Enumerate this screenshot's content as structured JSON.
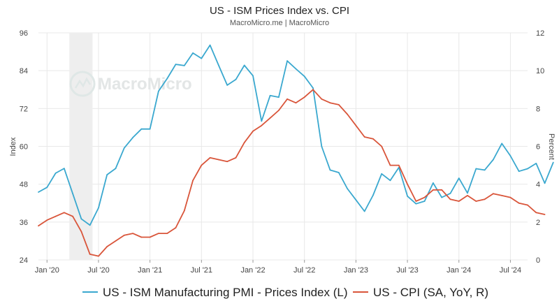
{
  "chart_data": {
    "type": "line",
    "title": "US - ISM Prices Index vs. CPI",
    "subtitle": "MacroMicro.me | MacroMicro",
    "watermark": "MacroMicro",
    "ylabel_left": "Index",
    "ylabel_right": "Percent",
    "y_left_range": [
      24,
      96
    ],
    "y_left_ticks": [
      "96",
      "84",
      "72",
      "60",
      "48",
      "36",
      "24"
    ],
    "y_right_range": [
      0,
      12
    ],
    "y_right_ticks": [
      "12",
      "10",
      "8",
      "6",
      "4",
      "2",
      "0"
    ],
    "x_range_month_index": [
      0,
      57
    ],
    "x_ticks": [
      {
        "label": "Jan '20",
        "m": 1
      },
      {
        "label": "Jul '20",
        "m": 7
      },
      {
        "label": "Jan '21",
        "m": 13
      },
      {
        "label": "Jul '21",
        "m": 19
      },
      {
        "label": "Jan '22",
        "m": 25
      },
      {
        "label": "Jul '22",
        "m": 31
      },
      {
        "label": "Jan '23",
        "m": 37
      },
      {
        "label": "Jul '23",
        "m": 43
      },
      {
        "label": "Jan '24",
        "m": 49
      },
      {
        "label": "Jul '24",
        "m": 55
      }
    ],
    "recession_shading": {
      "start_month_index": 3.6,
      "end_month_index": 6.3
    },
    "colors": {
      "series_pmi": "#3aa8cf",
      "series_cpi": "#d9553a",
      "recession": "#eeeeee",
      "grid": "#e8e8e8"
    },
    "series": [
      {
        "name": "US - ISM Manufacturing PMI - Prices Index (L)",
        "axis": "left",
        "color": "#3aa8cf",
        "start_month_index": 0,
        "values": [
          45.5,
          47,
          51.5,
          53,
          45,
          37,
          35,
          40.5,
          51,
          53,
          59.5,
          62.8,
          65.5,
          65.5,
          77.5,
          81.5,
          86,
          85.6,
          89.6,
          87.9,
          92.1,
          85.7,
          79.4,
          81.2,
          85.7,
          82.4,
          68,
          76.1,
          75.6,
          87.1,
          84.6,
          82.2,
          78.5,
          60,
          52.5,
          51.7,
          46.6,
          43,
          39.4,
          44.5,
          51.3,
          49.2,
          53.3,
          44.2,
          41.8,
          42.6,
          48.4,
          43.8,
          45.1,
          49.9,
          45.2,
          52.9,
          52.5,
          55.8,
          60.9,
          57,
          52.1,
          52.9,
          54.6,
          48.3,
          54.9
        ]
      },
      {
        "name": "US - CPI (SA, YoY, R)",
        "axis": "right",
        "color": "#d9553a",
        "start_month_index": 0,
        "values": [
          1.8,
          2.1,
          2.3,
          2.5,
          2.3,
          1.5,
          0.3,
          0.2,
          0.7,
          1.0,
          1.3,
          1.4,
          1.2,
          1.2,
          1.4,
          1.4,
          1.7,
          2.6,
          4.2,
          5.0,
          5.4,
          5.3,
          5.2,
          5.4,
          6.2,
          6.8,
          7.1,
          7.5,
          7.9,
          8.5,
          8.3,
          8.6,
          9.0,
          8.5,
          8.3,
          8.2,
          7.7,
          7.1,
          6.5,
          6.4,
          6.0,
          5.0,
          5.0,
          4.0,
          3.1,
          3.3,
          3.7,
          3.7,
          3.2,
          3.1,
          3.4,
          3.1,
          3.2,
          3.5,
          3.4,
          3.3,
          3.0,
          2.9,
          2.5,
          2.4
        ]
      }
    ]
  }
}
